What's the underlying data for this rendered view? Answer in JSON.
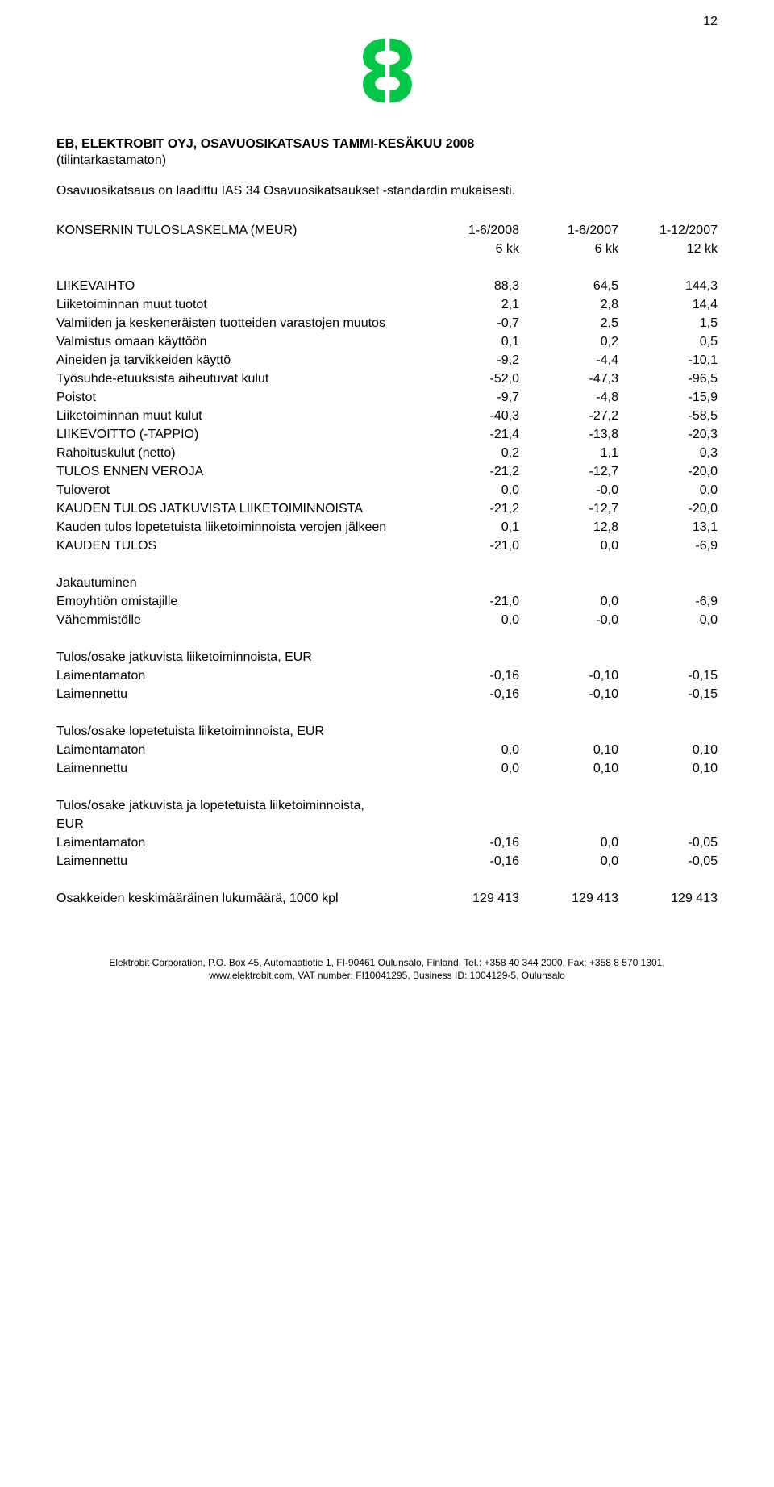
{
  "page_number": "12",
  "logo": {
    "color": "#00c846"
  },
  "heading_line1": "EB, ELEKTROBIT OYJ, OSAVUOSIKATSAUS TAMMI-KESÄKUU 2008",
  "heading_line2": "(tilintarkastamaton)",
  "intro": "Osavuosikatsaus on laadittu IAS 34 Osavuosikatsaukset -standardin mukaisesti.",
  "table_title": "KONSERNIN TULOSLASKELMA (MEUR)",
  "col_headers": {
    "c1a": "1-6/2008",
    "c1b": "6 kk",
    "c2a": "1-6/2007",
    "c2b": "6 kk",
    "c3a": "1-12/2007",
    "c3b": "12 kk"
  },
  "rows": [
    {
      "label": "LIIKEVAIHTO",
      "v": [
        "88,3",
        "64,5",
        "144,3"
      ]
    },
    {
      "label": "Liiketoiminnan muut tuotot",
      "v": [
        "2,1",
        "2,8",
        "14,4"
      ]
    },
    {
      "label": "Valmiiden ja keskeneräisten tuotteiden varastojen muutos",
      "v": [
        "-0,7",
        "2,5",
        "1,5"
      ]
    },
    {
      "label": "Valmistus omaan käyttöön",
      "v": [
        "0,1",
        "0,2",
        "0,5"
      ]
    },
    {
      "label": "Aineiden ja tarvikkeiden käyttö",
      "v": [
        "-9,2",
        "-4,4",
        "-10,1"
      ]
    },
    {
      "label": "Työsuhde-etuuksista aiheutuvat kulut",
      "v": [
        "-52,0",
        "-47,3",
        "-96,5"
      ]
    },
    {
      "label": "Poistot",
      "v": [
        "-9,7",
        "-4,8",
        "-15,9"
      ]
    },
    {
      "label": "Liiketoiminnan muut kulut",
      "v": [
        "-40,3",
        "-27,2",
        "-58,5"
      ]
    },
    {
      "label": "LIIKEVOITTO (-TAPPIO)",
      "v": [
        "-21,4",
        "-13,8",
        "-20,3"
      ]
    },
    {
      "label": "Rahoituskulut (netto)",
      "v": [
        "0,2",
        "1,1",
        "0,3"
      ]
    },
    {
      "label": "TULOS ENNEN VEROJA",
      "v": [
        "-21,2",
        "-12,7",
        "-20,0"
      ]
    },
    {
      "label": "Tuloverot",
      "v": [
        "0,0",
        "-0,0",
        "0,0"
      ]
    },
    {
      "label": "KAUDEN TULOS JATKUVISTA LIIKETOIMINNOISTA",
      "v": [
        "-21,2",
        "-12,7",
        "-20,0"
      ]
    },
    {
      "label": "Kauden tulos lopetetuista liiketoiminnoista verojen jälkeen",
      "v": [
        "0,1",
        "12,8",
        "13,1"
      ]
    },
    {
      "label": "KAUDEN TULOS",
      "v": [
        "-21,0",
        "0,0",
        "-6,9"
      ]
    }
  ],
  "jakautuminen": {
    "title": "Jakautuminen",
    "rows": [
      {
        "label": "Emoyhtiön omistajille",
        "v": [
          "-21,0",
          "0,0",
          "-6,9"
        ]
      },
      {
        "label": "Vähemmistölle",
        "v": [
          "0,0",
          "-0,0",
          "0,0"
        ]
      }
    ]
  },
  "tulos_jatkuvista": {
    "title": "Tulos/osake jatkuvista liiketoiminnoista, EUR",
    "rows": [
      {
        "label": "Laimentamaton",
        "v": [
          "-0,16",
          "-0,10",
          "-0,15"
        ]
      },
      {
        "label": "Laimennettu",
        "v": [
          "-0,16",
          "-0,10",
          "-0,15"
        ]
      }
    ]
  },
  "tulos_lopetetuista": {
    "title": "Tulos/osake lopetetuista liiketoiminnoista, EUR",
    "rows": [
      {
        "label": "Laimentamaton",
        "v": [
          "0,0",
          "0,10",
          "0,10"
        ]
      },
      {
        "label": "Laimennettu",
        "v": [
          "0,0",
          "0,10",
          "0,10"
        ]
      }
    ]
  },
  "tulos_yhteensa": {
    "title_l1": "Tulos/osake jatkuvista ja lopetetuista liiketoiminnoista,",
    "title_l2": "EUR",
    "rows": [
      {
        "label": "Laimentamaton",
        "v": [
          "-0,16",
          "0,0",
          "-0,05"
        ]
      },
      {
        "label": "Laimennettu",
        "v": [
          "-0,16",
          "0,0",
          "-0,05"
        ]
      }
    ]
  },
  "shares": {
    "label": "Osakkeiden keskimääräinen lukumäärä, 1000 kpl",
    "v": [
      "129 413",
      "129 413",
      "129 413"
    ]
  },
  "footer_l1": "Elektrobit Corporation, P.O. Box 45, Automaatiotie 1, FI-90461 Oulunsalo, Finland, Tel.: +358 40 344 2000, Fax: +358 8 570 1301,",
  "footer_l2": "www.elektrobit.com, VAT number: FI10041295, Business ID: 1004129-5, Oulunsalo"
}
